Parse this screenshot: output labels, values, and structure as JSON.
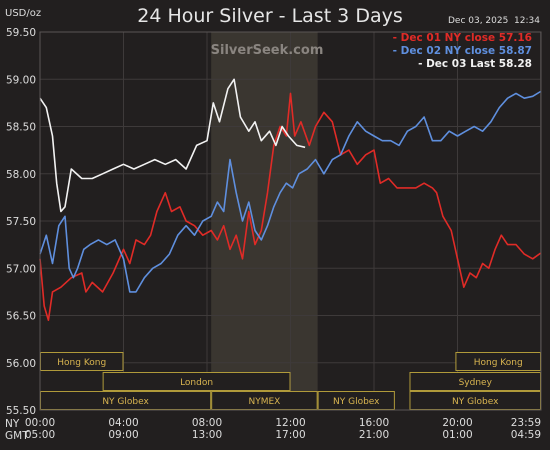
{
  "chart_data": {
    "type": "line",
    "title": "24 Hour Silver - Last 3 Days",
    "unit_label": "USD/oz",
    "timestamp": "Dec 03, 2025  12:34",
    "watermark": "SilverSeek.com",
    "ylim": [
      55.5,
      59.5
    ],
    "y_ticks": [
      "59.50",
      "59.00",
      "58.50",
      "58.00",
      "57.50",
      "57.00",
      "56.50",
      "56.00",
      "55.50"
    ],
    "y_tick_values": [
      59.5,
      59.0,
      58.5,
      58.0,
      57.5,
      57.0,
      56.5,
      56.0,
      55.5
    ],
    "xlim": [
      0,
      24
    ],
    "grid": true,
    "ny_hours_label": "NY",
    "gmt_hours_label": "GMT",
    "x_ticks_ny": [
      "00:00",
      "04:00",
      "08:00",
      "12:00",
      "16:00",
      "20:00",
      "23:59"
    ],
    "x_ticks_gmt": [
      "05:00",
      "09:00",
      "13:00",
      "17:00",
      "21:00",
      "01:00",
      "04:59"
    ],
    "x_tick_hours": [
      0,
      4,
      8,
      12,
      16,
      20,
      23.98
    ],
    "highlight_hours": [
      8.2,
      13.3
    ],
    "colors": {
      "background": "#221f1f",
      "grid": "#3e3a3a",
      "highlight": "#3a3630",
      "session_border": "#b09a3a",
      "session_text": "#d8b450",
      "series_dec01": "#e02b27",
      "series_dec02": "#5f8fde",
      "series_dec03": "#f2f2f2"
    },
    "sessions": [
      {
        "name": "Hong Kong",
        "start": 0,
        "end": 4.0,
        "row": 0
      },
      {
        "name": "Hong Kong",
        "start": 19.9,
        "end": 24,
        "row": 0
      },
      {
        "name": "London",
        "start": 3.0,
        "end": 12.0,
        "row": 1
      },
      {
        "name": "Sydney",
        "start": 17.7,
        "end": 24,
        "row": 1
      },
      {
        "name": "NY Globex",
        "start": 0,
        "end": 8.2,
        "row": 2
      },
      {
        "name": "NYMEX",
        "start": 8.2,
        "end": 13.3,
        "row": 2
      },
      {
        "name": "NY Globex",
        "start": 13.3,
        "end": 17.0,
        "row": 2
      },
      {
        "name": "NY Globex",
        "start": 17.7,
        "end": 24,
        "row": 2
      }
    ],
    "series": [
      {
        "name": "Dec 01 NY close 57.16",
        "color": "#e02b27",
        "points": [
          [
            0,
            57.1
          ],
          [
            0.2,
            56.6
          ],
          [
            0.4,
            56.45
          ],
          [
            0.6,
            56.75
          ],
          [
            1.0,
            56.8
          ],
          [
            1.5,
            56.9
          ],
          [
            2.0,
            56.95
          ],
          [
            2.2,
            56.75
          ],
          [
            2.5,
            56.85
          ],
          [
            3.0,
            56.75
          ],
          [
            3.5,
            56.95
          ],
          [
            4.0,
            57.2
          ],
          [
            4.3,
            57.05
          ],
          [
            4.6,
            57.3
          ],
          [
            5.0,
            57.25
          ],
          [
            5.3,
            57.35
          ],
          [
            5.6,
            57.6
          ],
          [
            6.0,
            57.8
          ],
          [
            6.3,
            57.6
          ],
          [
            6.7,
            57.65
          ],
          [
            7.0,
            57.5
          ],
          [
            7.4,
            57.45
          ],
          [
            7.8,
            57.35
          ],
          [
            8.2,
            57.4
          ],
          [
            8.5,
            57.3
          ],
          [
            8.8,
            57.45
          ],
          [
            9.1,
            57.2
          ],
          [
            9.4,
            57.35
          ],
          [
            9.7,
            57.1
          ],
          [
            10.0,
            57.6
          ],
          [
            10.3,
            57.25
          ],
          [
            10.6,
            57.4
          ],
          [
            10.9,
            57.8
          ],
          [
            11.2,
            58.3
          ],
          [
            11.5,
            58.5
          ],
          [
            11.8,
            58.4
          ],
          [
            12.0,
            58.85
          ],
          [
            12.2,
            58.4
          ],
          [
            12.5,
            58.55
          ],
          [
            12.9,
            58.3
          ],
          [
            13.2,
            58.5
          ],
          [
            13.6,
            58.65
          ],
          [
            14.0,
            58.55
          ],
          [
            14.4,
            58.2
          ],
          [
            14.8,
            58.25
          ],
          [
            15.2,
            58.1
          ],
          [
            15.6,
            58.2
          ],
          [
            16.0,
            58.25
          ],
          [
            16.3,
            57.9
          ],
          [
            16.7,
            57.95
          ],
          [
            17.1,
            57.85
          ],
          [
            17.5,
            57.85
          ],
          [
            18.0,
            57.85
          ],
          [
            18.4,
            57.9
          ],
          [
            18.8,
            57.85
          ],
          [
            19.0,
            57.8
          ],
          [
            19.3,
            57.55
          ],
          [
            19.7,
            57.4
          ],
          [
            20.0,
            57.1
          ],
          [
            20.3,
            56.8
          ],
          [
            20.6,
            56.95
          ],
          [
            20.9,
            56.9
          ],
          [
            21.2,
            57.05
          ],
          [
            21.5,
            57.0
          ],
          [
            21.8,
            57.2
          ],
          [
            22.1,
            57.35
          ],
          [
            22.4,
            57.25
          ],
          [
            22.8,
            57.25
          ],
          [
            23.2,
            57.15
          ],
          [
            23.6,
            57.1
          ],
          [
            23.98,
            57.16
          ]
        ]
      },
      {
        "name": "Dec 02 NY close 58.87",
        "color": "#5f8fde",
        "points": [
          [
            0,
            57.15
          ],
          [
            0.3,
            57.35
          ],
          [
            0.6,
            57.05
          ],
          [
            0.9,
            57.45
          ],
          [
            1.2,
            57.55
          ],
          [
            1.4,
            57.0
          ],
          [
            1.6,
            56.9
          ],
          [
            1.8,
            57.0
          ],
          [
            2.1,
            57.2
          ],
          [
            2.4,
            57.25
          ],
          [
            2.8,
            57.3
          ],
          [
            3.2,
            57.25
          ],
          [
            3.6,
            57.3
          ],
          [
            4.0,
            57.1
          ],
          [
            4.3,
            56.75
          ],
          [
            4.6,
            56.75
          ],
          [
            5.0,
            56.9
          ],
          [
            5.4,
            57.0
          ],
          [
            5.8,
            57.05
          ],
          [
            6.2,
            57.15
          ],
          [
            6.6,
            57.35
          ],
          [
            7.0,
            57.45
          ],
          [
            7.4,
            57.35
          ],
          [
            7.8,
            57.5
          ],
          [
            8.2,
            57.55
          ],
          [
            8.5,
            57.7
          ],
          [
            8.8,
            57.6
          ],
          [
            9.1,
            58.15
          ],
          [
            9.4,
            57.8
          ],
          [
            9.7,
            57.5
          ],
          [
            10.0,
            57.7
          ],
          [
            10.3,
            57.4
          ],
          [
            10.6,
            57.3
          ],
          [
            10.9,
            57.45
          ],
          [
            11.2,
            57.65
          ],
          [
            11.5,
            57.8
          ],
          [
            11.8,
            57.9
          ],
          [
            12.1,
            57.85
          ],
          [
            12.4,
            58.0
          ],
          [
            12.8,
            58.05
          ],
          [
            13.2,
            58.15
          ],
          [
            13.6,
            58.0
          ],
          [
            14.0,
            58.15
          ],
          [
            14.4,
            58.2
          ],
          [
            14.8,
            58.4
          ],
          [
            15.2,
            58.55
          ],
          [
            15.6,
            58.45
          ],
          [
            16.0,
            58.4
          ],
          [
            16.4,
            58.35
          ],
          [
            16.8,
            58.35
          ],
          [
            17.2,
            58.3
          ],
          [
            17.6,
            58.45
          ],
          [
            18.0,
            58.5
          ],
          [
            18.4,
            58.6
          ],
          [
            18.8,
            58.35
          ],
          [
            19.2,
            58.35
          ],
          [
            19.6,
            58.45
          ],
          [
            20.0,
            58.4
          ],
          [
            20.4,
            58.45
          ],
          [
            20.8,
            58.5
          ],
          [
            21.2,
            58.45
          ],
          [
            21.6,
            58.55
          ],
          [
            22.0,
            58.7
          ],
          [
            22.4,
            58.8
          ],
          [
            22.8,
            58.85
          ],
          [
            23.2,
            58.8
          ],
          [
            23.6,
            58.82
          ],
          [
            23.98,
            58.87
          ]
        ]
      },
      {
        "name": "Dec 03 Last 58.28",
        "color": "#f2f2f2",
        "points": [
          [
            0,
            58.8
          ],
          [
            0.3,
            58.7
          ],
          [
            0.6,
            58.4
          ],
          [
            0.8,
            57.9
          ],
          [
            1.0,
            57.6
          ],
          [
            1.2,
            57.65
          ],
          [
            1.5,
            58.05
          ],
          [
            2.0,
            57.95
          ],
          [
            2.5,
            57.95
          ],
          [
            3.0,
            58.0
          ],
          [
            3.5,
            58.05
          ],
          [
            4.0,
            58.1
          ],
          [
            4.5,
            58.05
          ],
          [
            5.0,
            58.1
          ],
          [
            5.5,
            58.15
          ],
          [
            6.0,
            58.1
          ],
          [
            6.5,
            58.15
          ],
          [
            7.0,
            58.05
          ],
          [
            7.5,
            58.3
          ],
          [
            8.0,
            58.35
          ],
          [
            8.3,
            58.75
          ],
          [
            8.6,
            58.55
          ],
          [
            9.0,
            58.9
          ],
          [
            9.3,
            59.0
          ],
          [
            9.6,
            58.6
          ],
          [
            10.0,
            58.45
          ],
          [
            10.3,
            58.55
          ],
          [
            10.6,
            58.35
          ],
          [
            11.0,
            58.45
          ],
          [
            11.3,
            58.3
          ],
          [
            11.6,
            58.5
          ],
          [
            11.9,
            58.4
          ],
          [
            12.3,
            58.3
          ],
          [
            12.7,
            58.28
          ]
        ]
      }
    ]
  }
}
